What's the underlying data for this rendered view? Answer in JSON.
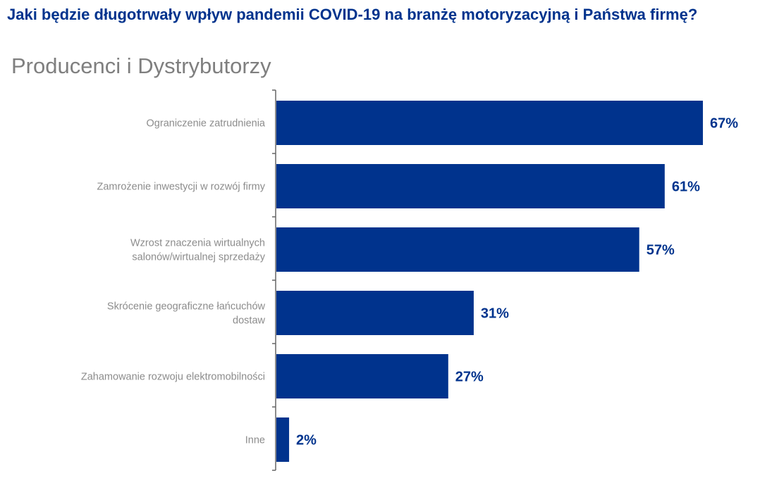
{
  "chart_data": {
    "type": "bar",
    "orientation": "horizontal",
    "title": "Jaki będzie długotrwały wpływ pandemii COVID-19 na branżę motoryzacyjną i Państwa firmę?",
    "subtitle": "Producenci i Dystrybutorzy",
    "categories": [
      [
        "Ograniczenie zatrudnienia"
      ],
      [
        "Zamrożenie inwestycji w rozwój firmy"
      ],
      [
        "Wzrost znaczenia wirtualnych",
        "salonów/wirtualnej sprzedaży"
      ],
      [
        "Skrócenie geograficzne łańcuchów",
        "dostaw"
      ],
      [
        "Zahamowanie rozwoju elektromobilności"
      ],
      [
        "Inne"
      ]
    ],
    "values": [
      67,
      61,
      57,
      31,
      27,
      2
    ],
    "data_labels": [
      "67%",
      "61%",
      "57%",
      "31%",
      "27%",
      "2%"
    ],
    "xlim": [
      0,
      74
    ],
    "grid": false,
    "bar_color": "#00338d",
    "label_color": "#8c8c8c",
    "title_color": "#00338d"
  }
}
